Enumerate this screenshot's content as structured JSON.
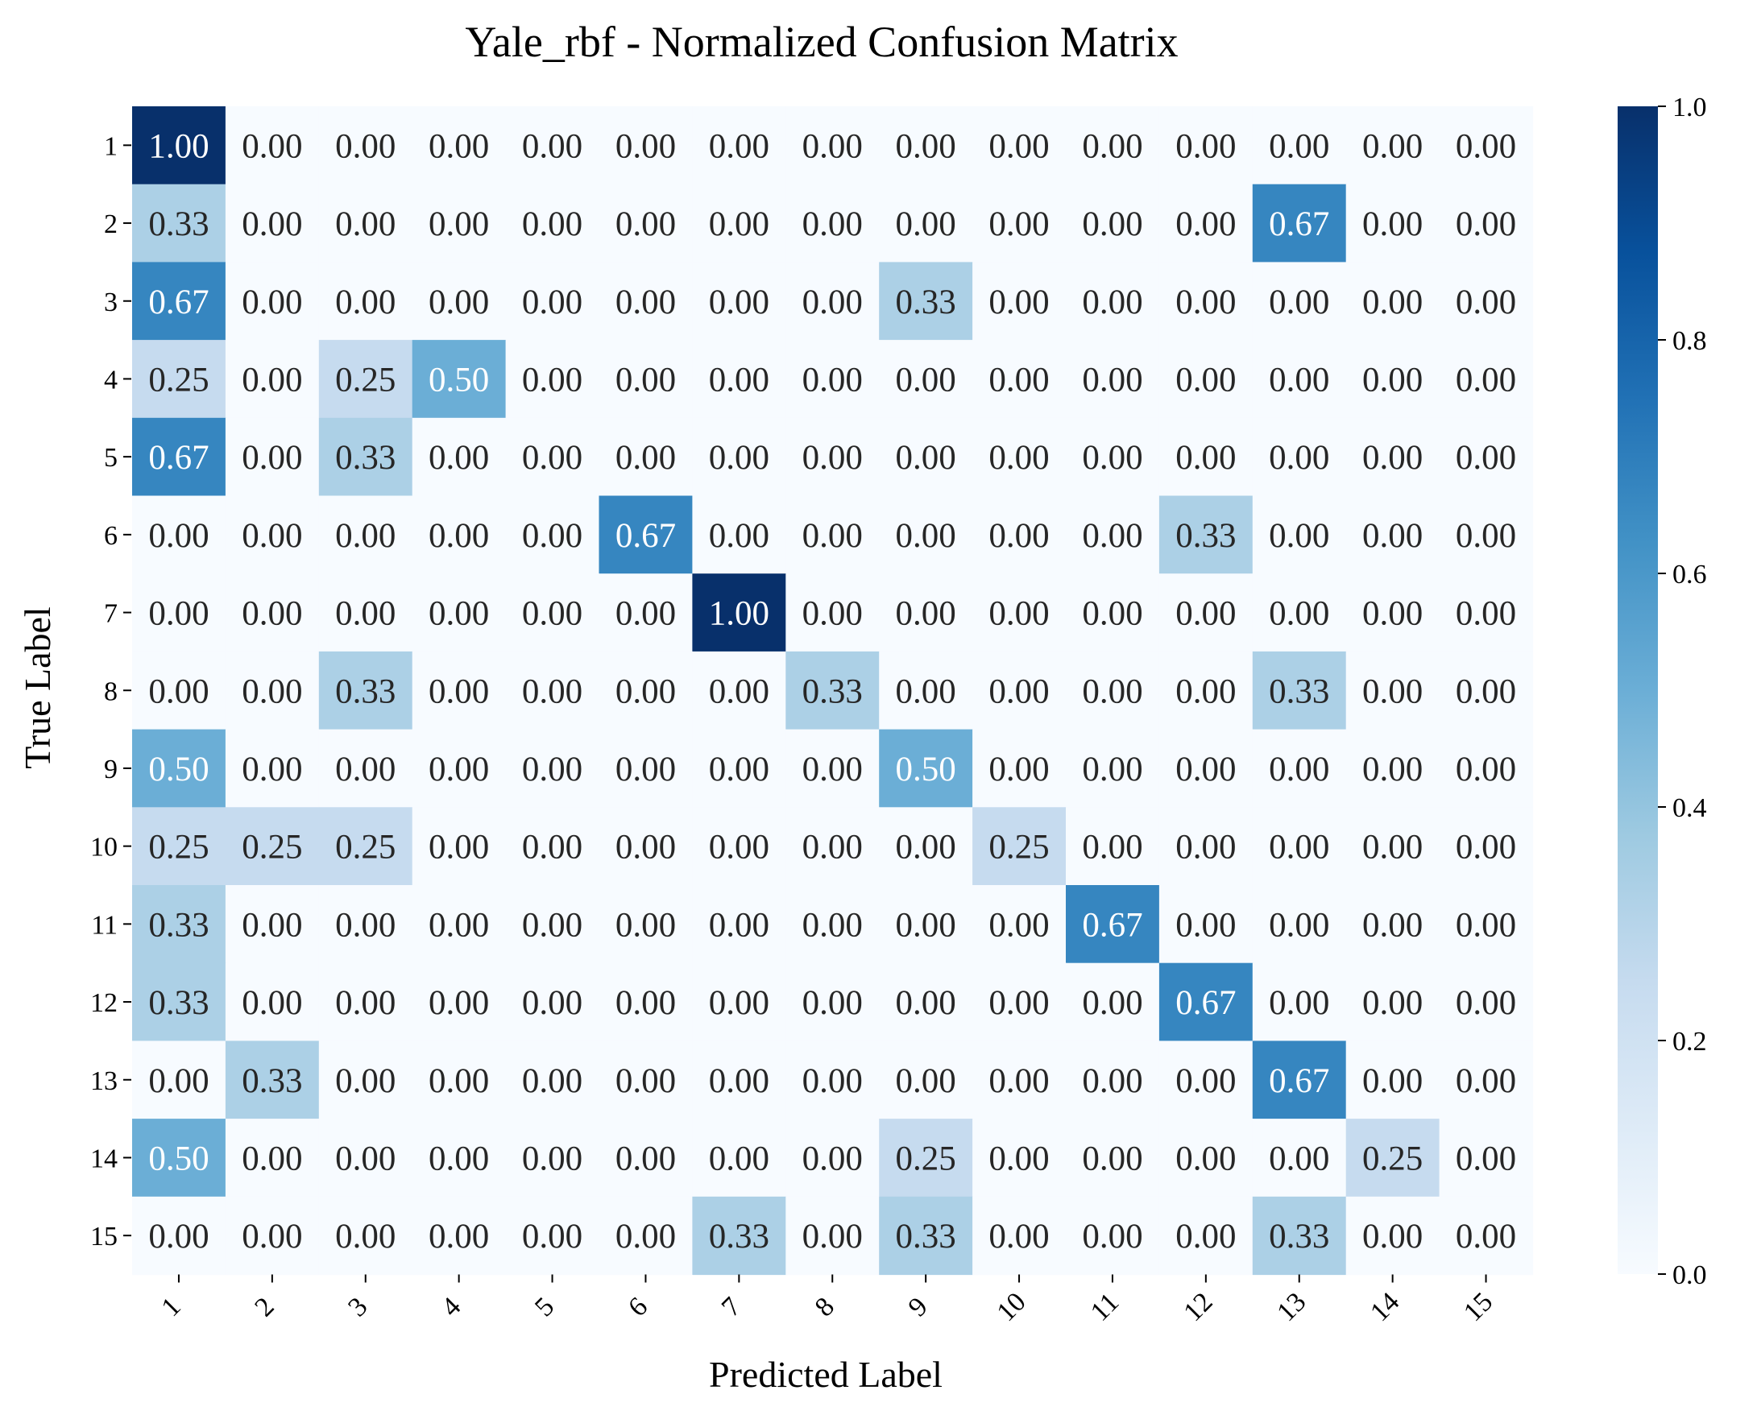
{
  "chart_data": {
    "type": "heatmap",
    "title": "Yale_rbf - Normalized Confusion Matrix",
    "xlabel": "Predicted Label",
    "ylabel": "True Label",
    "x_categories": [
      "1",
      "2",
      "3",
      "4",
      "5",
      "6",
      "7",
      "8",
      "9",
      "10",
      "11",
      "12",
      "13",
      "14",
      "15"
    ],
    "y_categories": [
      "1",
      "2",
      "3",
      "4",
      "5",
      "6",
      "7",
      "8",
      "9",
      "10",
      "11",
      "12",
      "13",
      "14",
      "15"
    ],
    "values": [
      [
        1.0,
        0.0,
        0.0,
        0.0,
        0.0,
        0.0,
        0.0,
        0.0,
        0.0,
        0.0,
        0.0,
        0.0,
        0.0,
        0.0,
        0.0
      ],
      [
        0.33,
        0.0,
        0.0,
        0.0,
        0.0,
        0.0,
        0.0,
        0.0,
        0.0,
        0.0,
        0.0,
        0.0,
        0.67,
        0.0,
        0.0
      ],
      [
        0.67,
        0.0,
        0.0,
        0.0,
        0.0,
        0.0,
        0.0,
        0.0,
        0.33,
        0.0,
        0.0,
        0.0,
        0.0,
        0.0,
        0.0
      ],
      [
        0.25,
        0.0,
        0.25,
        0.5,
        0.0,
        0.0,
        0.0,
        0.0,
        0.0,
        0.0,
        0.0,
        0.0,
        0.0,
        0.0,
        0.0
      ],
      [
        0.67,
        0.0,
        0.33,
        0.0,
        0.0,
        0.0,
        0.0,
        0.0,
        0.0,
        0.0,
        0.0,
        0.0,
        0.0,
        0.0,
        0.0
      ],
      [
        0.0,
        0.0,
        0.0,
        0.0,
        0.0,
        0.67,
        0.0,
        0.0,
        0.0,
        0.0,
        0.0,
        0.33,
        0.0,
        0.0,
        0.0
      ],
      [
        0.0,
        0.0,
        0.0,
        0.0,
        0.0,
        0.0,
        1.0,
        0.0,
        0.0,
        0.0,
        0.0,
        0.0,
        0.0,
        0.0,
        0.0
      ],
      [
        0.0,
        0.0,
        0.33,
        0.0,
        0.0,
        0.0,
        0.0,
        0.33,
        0.0,
        0.0,
        0.0,
        0.0,
        0.33,
        0.0,
        0.0
      ],
      [
        0.5,
        0.0,
        0.0,
        0.0,
        0.0,
        0.0,
        0.0,
        0.0,
        0.5,
        0.0,
        0.0,
        0.0,
        0.0,
        0.0,
        0.0
      ],
      [
        0.25,
        0.25,
        0.25,
        0.0,
        0.0,
        0.0,
        0.0,
        0.0,
        0.0,
        0.25,
        0.0,
        0.0,
        0.0,
        0.0,
        0.0
      ],
      [
        0.33,
        0.0,
        0.0,
        0.0,
        0.0,
        0.0,
        0.0,
        0.0,
        0.0,
        0.0,
        0.67,
        0.0,
        0.0,
        0.0,
        0.0
      ],
      [
        0.33,
        0.0,
        0.0,
        0.0,
        0.0,
        0.0,
        0.0,
        0.0,
        0.0,
        0.0,
        0.0,
        0.67,
        0.0,
        0.0,
        0.0
      ],
      [
        0.0,
        0.33,
        0.0,
        0.0,
        0.0,
        0.0,
        0.0,
        0.0,
        0.0,
        0.0,
        0.0,
        0.0,
        0.67,
        0.0,
        0.0
      ],
      [
        0.5,
        0.0,
        0.0,
        0.0,
        0.0,
        0.0,
        0.0,
        0.0,
        0.25,
        0.0,
        0.0,
        0.0,
        0.0,
        0.25,
        0.0
      ],
      [
        0.0,
        0.0,
        0.0,
        0.0,
        0.0,
        0.0,
        0.33,
        0.0,
        0.33,
        0.0,
        0.0,
        0.0,
        0.33,
        0.0,
        0.0
      ]
    ],
    "value_format": "0.00",
    "colormap": "Blues",
    "colorbar": {
      "range": [
        0.0,
        1.0
      ],
      "ticks": [
        0.0,
        0.2,
        0.4,
        0.6,
        0.8,
        1.0
      ],
      "tick_labels": [
        "0.0",
        "0.2",
        "0.4",
        "0.6",
        "0.8",
        "1.0"
      ]
    },
    "x_tick_rotation_deg": 45,
    "grid": false,
    "legend": "colorbar-right"
  }
}
